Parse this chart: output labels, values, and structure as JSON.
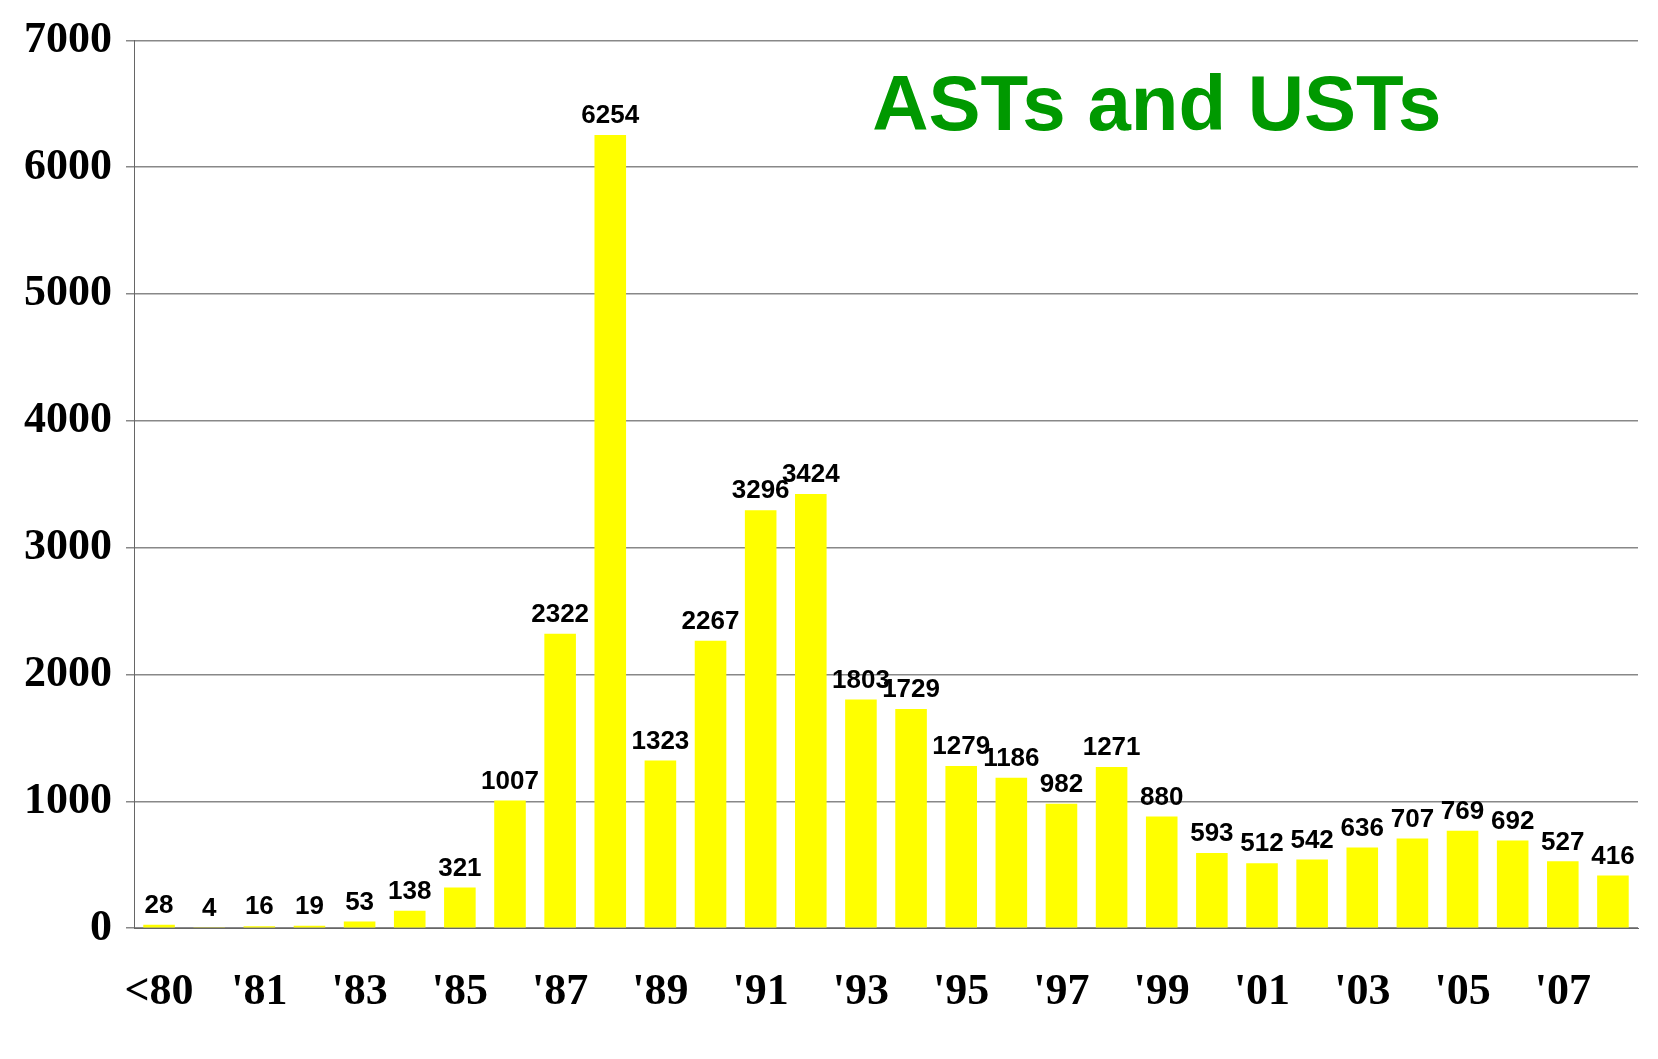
{
  "chart_data": {
    "type": "bar",
    "title": "ASTs and USTs",
    "categories": [
      "<80",
      null,
      "'81",
      null,
      "'83",
      null,
      "'85",
      null,
      "'87",
      null,
      "'89",
      null,
      "'91",
      null,
      "'93",
      null,
      "'95",
      null,
      "'97",
      null,
      "'99",
      null,
      "'01",
      null,
      "'03",
      null,
      "'05",
      null,
      "'07",
      null
    ],
    "values": [
      28,
      4,
      16,
      19,
      53,
      138,
      321,
      1007,
      2322,
      6254,
      1323,
      2267,
      3296,
      3424,
      1803,
      1729,
      1279,
      1186,
      982,
      1271,
      880,
      593,
      512,
      542,
      636,
      707,
      769,
      692,
      527,
      416
    ],
    "color": "#ffff00",
    "ylim": [
      0,
      7000
    ],
    "yticks": [
      0,
      1000,
      2000,
      3000,
      4000,
      5000,
      6000,
      7000
    ],
    "grid": "y",
    "legend": false,
    "data_labels": true
  }
}
